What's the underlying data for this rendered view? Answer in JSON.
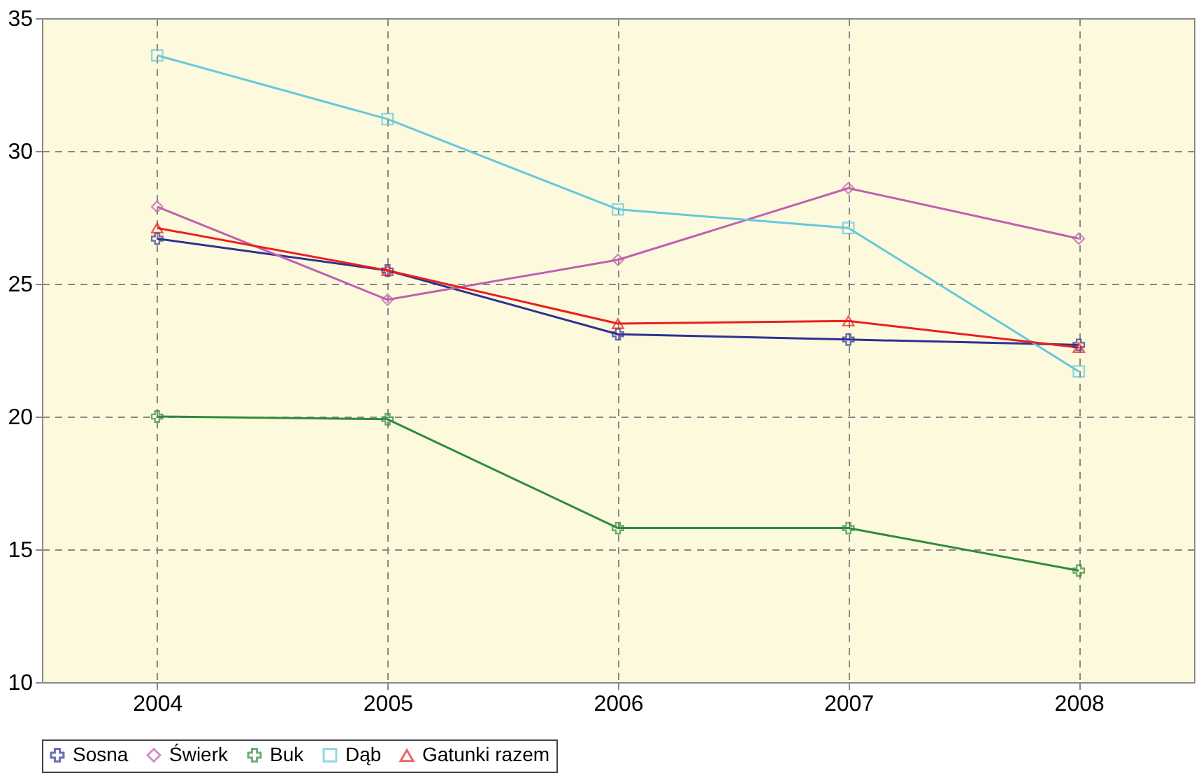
{
  "chart_data": {
    "type": "line",
    "categories": [
      "2004",
      "2005",
      "2006",
      "2007",
      "2008"
    ],
    "series": [
      {
        "name": "Sosna",
        "color": "#2e3192",
        "marker": "cross",
        "values": [
          26.7,
          25.5,
          23.1,
          22.9,
          22.7
        ]
      },
      {
        "name": "Świerk",
        "color": "#c060b0",
        "marker": "diamond",
        "values": [
          27.9,
          24.4,
          25.9,
          28.6,
          26.7
        ]
      },
      {
        "name": "Buk",
        "color": "#2e8b3e",
        "marker": "cross",
        "values": [
          20.0,
          19.9,
          15.8,
          15.8,
          14.2
        ]
      },
      {
        "name": "Dąb",
        "color": "#66c8dc",
        "marker": "square",
        "values": [
          33.6,
          31.2,
          27.8,
          27.1,
          21.7
        ]
      },
      {
        "name": "Gatunki razem",
        "color": "#e8201f",
        "marker": "triangle",
        "values": [
          27.1,
          25.5,
          23.5,
          23.6,
          22.6
        ]
      }
    ],
    "ylim": [
      10,
      35
    ],
    "yticks": [
      10,
      15,
      20,
      25,
      30,
      35
    ],
    "grid": true,
    "legend": "bottom",
    "line_style": "solid"
  }
}
